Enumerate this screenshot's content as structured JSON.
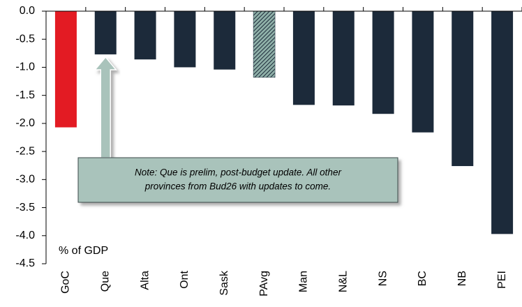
{
  "chart_data": {
    "type": "bar",
    "categories": [
      "GoC",
      "Que",
      "Alta",
      "Ont",
      "Sask",
      "PAvg",
      "Man",
      "N&L",
      "NS",
      "BC",
      "NB",
      "PEI"
    ],
    "values": [
      -2.07,
      -0.77,
      -0.86,
      -1.0,
      -1.04,
      -1.18,
      -1.67,
      -1.68,
      -1.83,
      -2.16,
      -2.76,
      -3.97
    ],
    "colors": [
      "#e31b23",
      "#1c2a3a",
      "#1c2a3a",
      "#1c2a3a",
      "#1c2a3a",
      "#8fb0a8",
      "#1c2a3a",
      "#1c2a3a",
      "#1c2a3a",
      "#1c2a3a",
      "#1c2a3a",
      "#1c2a3a"
    ],
    "hatch": "PAvg",
    "ylim": [
      -4.5,
      0
    ],
    "yticks": [
      {
        "value": 0,
        "label": "0.0"
      },
      -0.5,
      {
        "value": -1,
        "label": "-1.0"
      },
      -1.5,
      {
        "value": -2,
        "label": "-2.0"
      },
      -2.5,
      {
        "value": -3,
        "label": "-3.0"
      },
      -3.5,
      {
        "value": -4,
        "label": "-4.0"
      },
      -4.5
    ],
    "y_axis_label": "% of GDP",
    "annotation": [
      "Note: Que is prelim, post-budget update. All other",
      "provinces from Bud26 with updates to come."
    ],
    "annotation_target": "Que"
  }
}
